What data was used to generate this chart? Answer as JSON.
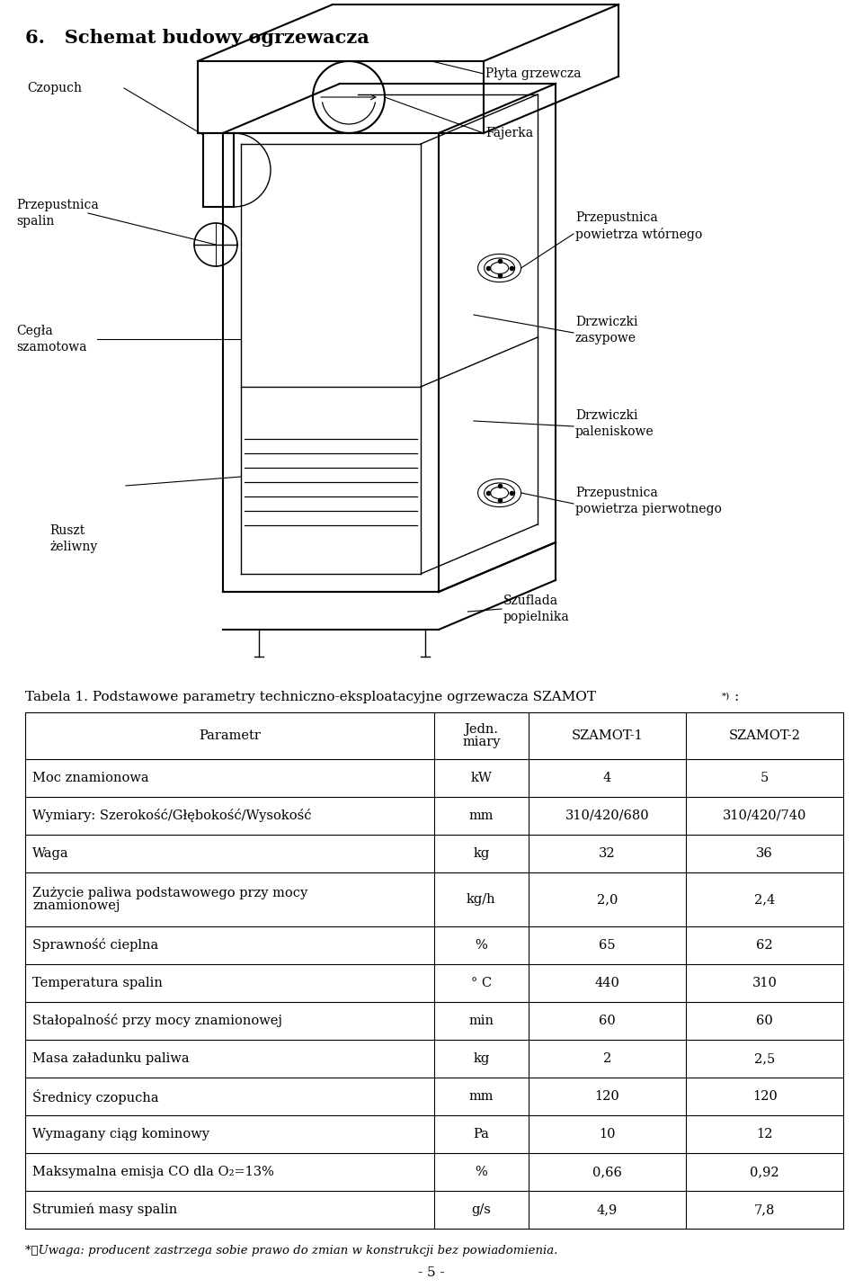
{
  "heading": "6.   Schemat budowy ogrzewacza",
  "col_headers": [
    "Parametr",
    "Jedn.\nmiary",
    "SZAMOT-1",
    "SZAMOT-2"
  ],
  "rows": [
    [
      "Moc znamionowa",
      "kW",
      "4",
      "5"
    ],
    [
      "Wymiary: Szerokość/Głębokość/Wysokość",
      "mm",
      "310/420/680",
      "310/420/740"
    ],
    [
      "Waga",
      "kg",
      "32",
      "36"
    ],
    [
      "Zużycie paliwa podstawowego przy mocy\nznamionowej",
      "kg/h",
      "2,0",
      "2,4"
    ],
    [
      "Sprawność cieplna",
      "%",
      "65",
      "62"
    ],
    [
      "Temperatura spalin",
      "° C",
      "440",
      "310"
    ],
    [
      "Stałopalność przy mocy znamionowej",
      "min",
      "60",
      "60"
    ],
    [
      "Masa załadunku paliwa",
      "kg",
      "2",
      "2,5"
    ],
    [
      "Średnicy czopucha",
      "mm",
      "120",
      "120"
    ],
    [
      "Wymagany ciąg kominowy",
      "Pa",
      "10",
      "12"
    ],
    [
      "Maksymalna emisja CO dla O₂=13%",
      "%",
      "0,66",
      "0,92"
    ],
    [
      "Strumień masy spalin",
      "g/s",
      "4,9",
      "7,8"
    ]
  ],
  "page_number": "- 5 -"
}
